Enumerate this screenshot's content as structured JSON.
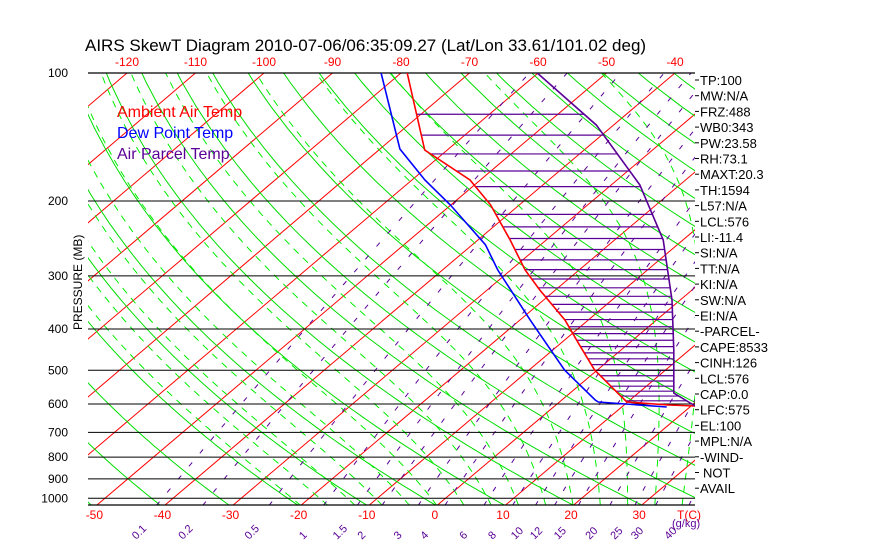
{
  "chart_data": {
    "type": "line",
    "title": "AIRS SkewT Diagram 2010-07-06/06:35:09.27 (Lat/Lon 33.61/101.02 deg)",
    "ylabel": "PRESSURE (MB)",
    "xlabel": "T(C)",
    "mixing_ratio_unit": "(g/kg)",
    "ylim": [
      1040,
      100
    ],
    "pressure_ticks": [
      100,
      200,
      300,
      400,
      500,
      600,
      700,
      800,
      900,
      1000
    ],
    "top_temp_ticks": [
      -120,
      -110,
      -100,
      -90,
      -80,
      -70,
      -60,
      -50,
      -40
    ],
    "bottom_temp_ticks": [
      -50,
      -40,
      -30,
      -20,
      -10,
      0,
      10,
      20,
      30
    ],
    "mixing_ratios": [
      "0.1",
      "0.2",
      "0.5",
      "1",
      "1.5",
      "2",
      "3",
      "4",
      "6",
      "8",
      "10",
      "12",
      "15",
      "20",
      "25",
      "30",
      "40"
    ],
    "isotherms": [
      -160,
      -150,
      -140,
      -130,
      -120,
      -110,
      -100,
      -90,
      -80,
      -70,
      -60,
      -50,
      -40,
      -30,
      -20,
      -10,
      0,
      10,
      20,
      30,
      40
    ],
    "dry_adiabats_K": [
      200,
      210,
      220,
      230,
      240,
      250,
      260,
      270,
      280,
      290,
      300,
      310,
      320,
      330,
      340,
      350,
      360,
      370,
      380,
      390,
      400,
      410,
      420,
      430,
      440,
      450,
      460,
      470,
      480,
      490,
      500,
      510,
      520
    ],
    "moist_adiabats_start_C_at_1000": [
      -20,
      -16,
      -12,
      -8,
      -4,
      0,
      4,
      8,
      12,
      16,
      20,
      24,
      28,
      32,
      36,
      40
    ],
    "legend": [
      {
        "name": "Ambient Air Temp",
        "color": "#ff0000"
      },
      {
        "name": "Dew Point Temp",
        "color": "#0000ff"
      },
      {
        "name": "Air Parcel Temp",
        "color": "#5a0096"
      }
    ],
    "series": [
      {
        "name": "Ambient Air Temp",
        "color": "#ff0000",
        "points": [
          [
            100,
            -79.1
          ],
          [
            151.7,
            -63.3
          ],
          [
            178.5,
            -51.5
          ],
          [
            204.2,
            -44.2
          ],
          [
            246.9,
            -35.3
          ],
          [
            290.6,
            -27.9
          ],
          [
            323.7,
            -22.3
          ],
          [
            381,
            -13.4
          ],
          [
            436.6,
            -6.9
          ],
          [
            499.4,
            -0.4
          ],
          [
            571.5,
            7.6
          ],
          [
            593.8,
            9.9
          ],
          [
            603.5,
            16.5
          ],
          [
            606.8,
            20.6
          ]
        ]
      },
      {
        "name": "Dew Point Temp",
        "color": "#0000ff",
        "points": [
          [
            100,
            -82.9
          ],
          [
            150.9,
            -67.1
          ],
          [
            178.5,
            -58.1
          ],
          [
            204.2,
            -50.1
          ],
          [
            253.3,
            -38.1
          ],
          [
            290.6,
            -31.9
          ],
          [
            381,
            -18.5
          ],
          [
            499.4,
            -4.8
          ],
          [
            587.4,
            4.9
          ],
          [
            593.8,
            5.7
          ],
          [
            610,
            16.6
          ]
        ]
      },
      {
        "name": "Air Parcel Temp",
        "color": "#5a0096",
        "points": [
          [
            100,
            -60.1
          ],
          [
            132.6,
            -42.5
          ],
          [
            183.4,
            -25.8
          ],
          [
            246.9,
            -12.9
          ],
          [
            341.9,
            -1.2
          ],
          [
            448.9,
            7.8
          ],
          [
            565.4,
            15.2
          ],
          [
            606.8,
            20.6
          ]
        ]
      }
    ],
    "cape_hatch_pressures": [
      125,
      140,
      155,
      170,
      185,
      200,
      215,
      230,
      245,
      260,
      275,
      290,
      305,
      320,
      335,
      350,
      365,
      380,
      395,
      410,
      425,
      440,
      455,
      470,
      485,
      500,
      515,
      530,
      545,
      560,
      575,
      590
    ]
  },
  "indices": [
    "TP:100",
    "MW:N/A",
    "FRZ:488",
    "WB0:343",
    "PW:23.58",
    "RH:73.1",
    "MAXT:20.3",
    "TH:1594",
    "L57:N/A",
    "LCL:576",
    "LI:-11.4",
    "SI:N/A",
    "TT:N/A",
    "KI:N/A",
    "SW:N/A",
    "EI:N/A",
    "-PARCEL-",
    "CAPE:8533",
    "CINH:126",
    "LCL:576",
    "CAP:0.0",
    "LFC:575",
    "EL:100",
    "MPL:N/A",
    "-WIND-",
    "NOT",
    "AVAIL"
  ]
}
